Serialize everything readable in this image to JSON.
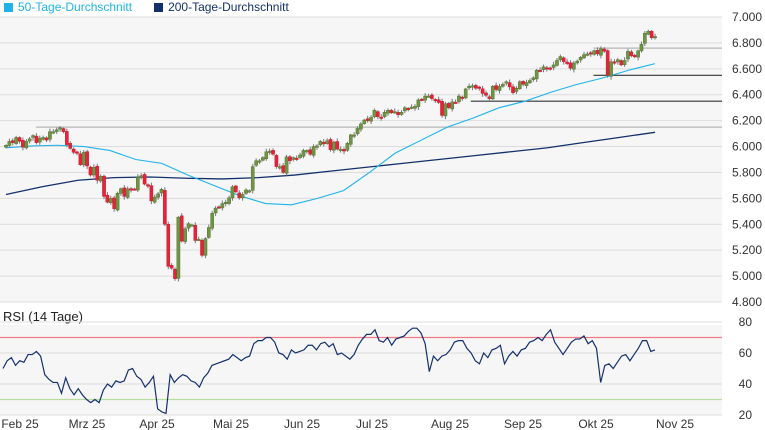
{
  "legend": [
    {
      "label": "50-Tage-Durchschnitt",
      "color": "#1eb3ea"
    },
    {
      "label": "200-Tage-Durchschnitt",
      "color": "#14306b"
    }
  ],
  "chart_data": [
    {
      "type": "candlestick",
      "title": "",
      "ylim": [
        4800,
        7000
      ],
      "yticks": [
        "7.000",
        "6.800",
        "6.600",
        "6.400",
        "6.200",
        "6.000",
        "5.800",
        "5.600",
        "5.400",
        "5.200",
        "5.000",
        "4.800"
      ],
      "ytick_values": [
        7000,
        6800,
        6600,
        6400,
        6200,
        6000,
        5800,
        5600,
        5400,
        5200,
        5000,
        4800
      ],
      "grid": true,
      "colors": {
        "up": "#6f9443",
        "down": "#e5223a",
        "ma50": "#1eb3ea",
        "ma200": "#14306b"
      },
      "close": [
        6010,
        6040,
        6030,
        6070,
        6040,
        5995,
        6040,
        6060,
        6085,
        6030,
        6065,
        6070,
        6050,
        6115,
        6115,
        6130,
        6145,
        6115,
        6015,
        5985,
        5955,
        5955,
        5860,
        5955,
        5850,
        5780,
        5840,
        5740,
        5770,
        5615,
        5570,
        5600,
        5520,
        5640,
        5675,
        5615,
        5675,
        5665,
        5670,
        5765,
        5775,
        5710,
        5695,
        5580,
        5610,
        5635,
        5670,
        5400,
        5075,
        5060,
        4980,
        5455,
        5270,
        5365,
        5405,
        5395,
        5275,
        5285,
        5160,
        5290,
        5375,
        5485,
        5525,
        5530,
        5560,
        5570,
        5605,
        5690,
        5650,
        5605,
        5630,
        5665,
        5660,
        5845,
        5890,
        5890,
        5915,
        5960,
        5965,
        5940,
        5845,
        5845,
        5800,
        5920,
        5890,
        5915,
        5910,
        5935,
        5970,
        5970,
        5940,
        6000,
        6005,
        6040,
        6020,
        6045,
        5975,
        6035,
        5980,
        5980,
        5965,
        6025,
        6090,
        6090,
        6140,
        6175,
        6205,
        6200,
        6225,
        6280,
        6230,
        6225,
        6265,
        6280,
        6260,
        6270,
        6245,
        6265,
        6300,
        6295,
        6305,
        6310,
        6360,
        6365,
        6390,
        6390,
        6370,
        6360,
        6340,
        6240,
        6330,
        6300,
        6345,
        6340,
        6390,
        6375,
        6445,
        6465,
        6470,
        6450,
        6450,
        6410,
        6395,
        6370,
        6465,
        6440,
        6465,
        6480,
        6500,
        6460,
        6415,
        6450,
        6500,
        6480,
        6495,
        6510,
        6530,
        6590,
        6585,
        6615,
        6605,
        6600,
        6630,
        6665,
        6695,
        6655,
        6640,
        6605,
        6645,
        6660,
        6690,
        6710,
        6715,
        6715,
        6740,
        6715,
        6755,
        6735,
        6550,
        6655,
        6645,
        6670,
        6630,
        6665,
        6735,
        6700,
        6700,
        6740,
        6790,
        6875,
        6890,
        6840,
        6850
      ],
      "ma50": [
        5990,
        6005,
        6010,
        6000,
        5970,
        5900,
        5870,
        5780,
        5700,
        5620,
        5560,
        5550,
        5600,
        5660,
        5800,
        5950,
        6050,
        6150,
        6220,
        6300,
        6350,
        6420,
        6480,
        6530,
        6590,
        6640
      ],
      "ma200": [
        5630,
        5690,
        5740,
        5760,
        5765,
        5755,
        5750,
        5760,
        5780,
        5810,
        5840,
        5870,
        5900,
        5930,
        5960,
        5990,
        6030,
        6070,
        6110
      ],
      "support_lines": [
        {
          "value": 6760,
          "style": "gray",
          "from_fraction": 0.822
        },
        {
          "value": 6550,
          "style": "black",
          "from_fraction": 0.822
        },
        {
          "value": 6350,
          "style": "black",
          "from_fraction": 0.652
        },
        {
          "value": 6150,
          "style": "gray",
          "from_fraction": 0.05
        }
      ]
    },
    {
      "type": "line",
      "title": "RSI (14 Tage)",
      "ylim": [
        20,
        80
      ],
      "yticks": [
        "80",
        "60",
        "40",
        "20"
      ],
      "ytick_values": [
        80,
        60,
        40,
        20
      ],
      "overbought": 70,
      "oversold": 30,
      "colors": {
        "line": "#14306b",
        "overbought": "#f07a86",
        "oversold": "#b9dca0"
      },
      "values": [
        50,
        55,
        57,
        52,
        55,
        54,
        59,
        59,
        61,
        58,
        46,
        43,
        41,
        41,
        34,
        44,
        37,
        33,
        37,
        33,
        30,
        28,
        30,
        28,
        36,
        40,
        38,
        42,
        41,
        42,
        49,
        50,
        45,
        43,
        38,
        41,
        45,
        24,
        22,
        21,
        46,
        41,
        44,
        46,
        45,
        42,
        41,
        38,
        44,
        47,
        52,
        53,
        54,
        55,
        56,
        59,
        57,
        55,
        57,
        58,
        66,
        68,
        68,
        70,
        70,
        67,
        60,
        59,
        56,
        62,
        60,
        61,
        62,
        65,
        65,
        62,
        66,
        67,
        64,
        66,
        59,
        60,
        58,
        56,
        59,
        65,
        69,
        72,
        72,
        75,
        68,
        67,
        70,
        65,
        69,
        70,
        71,
        74,
        76,
        76,
        73,
        66,
        48,
        58,
        55,
        58,
        59,
        62,
        67,
        68,
        68,
        63,
        60,
        55,
        53,
        60,
        57,
        62,
        63,
        65,
        53,
        58,
        61,
        58,
        62,
        63,
        67,
        68,
        70,
        68,
        72,
        75,
        67,
        63,
        59,
        63,
        67,
        69,
        69,
        71,
        66,
        68,
        63,
        41,
        52,
        53,
        50,
        54,
        58,
        59,
        55,
        59,
        63,
        68,
        68,
        61,
        62
      ]
    }
  ],
  "xaxis": {
    "labels": [
      "Feb 25",
      "Mrz 25",
      "Apr 25",
      "Mai 25",
      "Jun 25",
      "Jul 25",
      "Aug 25",
      "Sep 25",
      "Okt 25",
      "Nov 25"
    ]
  }
}
